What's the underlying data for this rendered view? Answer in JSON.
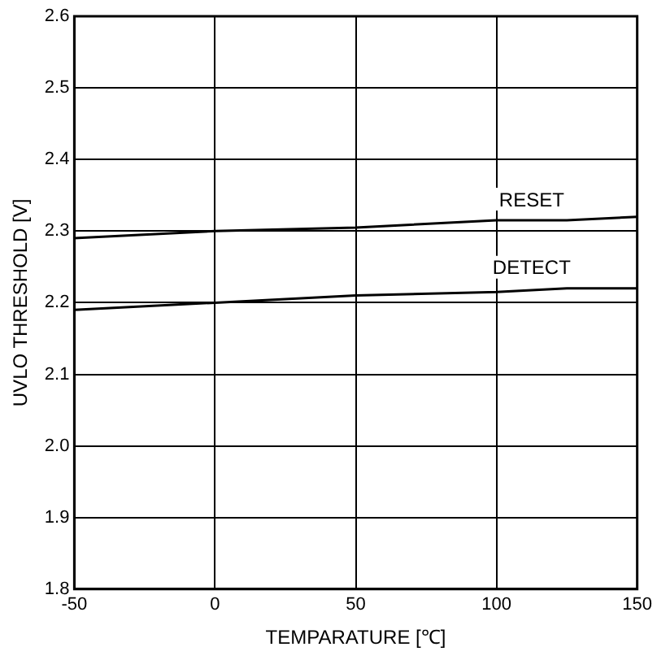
{
  "chart_data": {
    "type": "line",
    "xlabel": "TEMPARATURE [℃]",
    "ylabel": "UVLO THRESHOLD [V]",
    "x": [
      -50,
      0,
      50,
      100,
      125,
      150
    ],
    "series": [
      {
        "name": "RESET",
        "color": "#000000",
        "values": [
          2.29,
          2.3,
          2.305,
          2.315,
          2.315,
          2.32
        ]
      },
      {
        "name": "DETECT",
        "color": "#000000",
        "values": [
          2.19,
          2.2,
          2.21,
          2.215,
          2.22,
          2.22
        ]
      }
    ],
    "xlim": [
      -50,
      150
    ],
    "xticks": [
      -50,
      0,
      50,
      100,
      150
    ],
    "ylim": [
      1.8,
      2.6
    ],
    "yticks": [
      1.8,
      1.9,
      {
        "value": 2,
        "label": "2.0"
      },
      2.1,
      2.2,
      2.3,
      2.4,
      2.5,
      2.6
    ],
    "grid": true,
    "legend": false,
    "marker": "none",
    "line_style": "solid"
  }
}
